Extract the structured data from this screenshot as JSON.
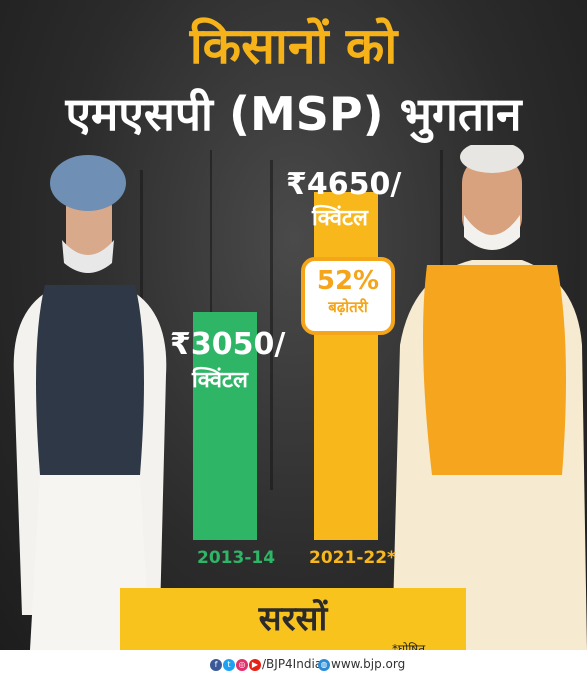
{
  "title": {
    "line1": "किसानों को",
    "line2": "एमएसपी (MSP) भुगतान"
  },
  "chart_data": {
    "type": "bar",
    "categories": [
      "2013-14",
      "2021-22*"
    ],
    "values": [
      3050,
      4650
    ],
    "value_labels": [
      "₹3050/",
      "₹4650/"
    ],
    "unit_label": "क्विंटल",
    "colors": [
      "#2fb566",
      "#f8b81c"
    ],
    "annotation": {
      "percent": "52%",
      "label": "बढ़ोतरी"
    },
    "xlabel": "सरसों",
    "ylim": [
      0,
      5000
    ]
  },
  "note": "*घोषित",
  "footer": {
    "handle": "/BJP4India",
    "website": "www.bjp.org"
  }
}
